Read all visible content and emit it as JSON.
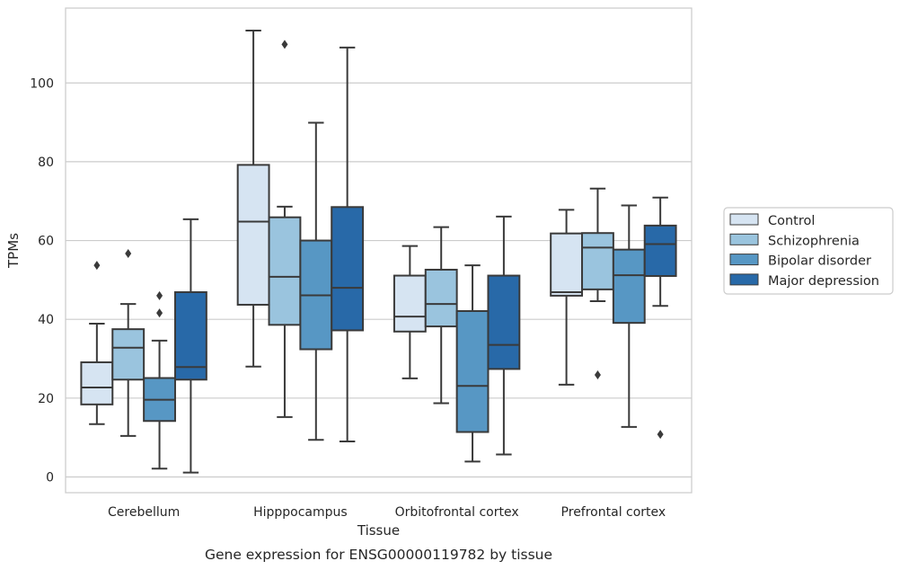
{
  "chart_data": {
    "type": "boxplot",
    "title": "",
    "caption": "Gene expression for ENSG00000119782 by tissue",
    "xlabel": "Tissue",
    "ylabel": "TPMs",
    "ylim": [
      -4,
      119
    ],
    "yticks": [
      0,
      20,
      40,
      60,
      80,
      100
    ],
    "grid": "horizontal",
    "legend_position": "right",
    "categories": [
      "Cerebellum",
      "Hipppocampus",
      "Orbitofrontal cortex",
      "Prefrontal cortex"
    ],
    "series": [
      {
        "name": "Control",
        "color": "#d6e4f2",
        "boxes": [
          {
            "whislo": 13.4,
            "q1": 18.4,
            "med": 22.7,
            "q3": 29.1,
            "whishi": 38.9,
            "fliers": [
              53.7
            ]
          },
          {
            "whislo": 28.0,
            "q1": 43.7,
            "med": 64.8,
            "q3": 79.2,
            "whishi": 113.3,
            "fliers": []
          },
          {
            "whislo": 25.0,
            "q1": 36.9,
            "med": 40.7,
            "q3": 51.1,
            "whishi": 58.6,
            "fliers": []
          },
          {
            "whislo": 23.4,
            "q1": 46.0,
            "med": 46.9,
            "q3": 61.8,
            "whishi": 67.8,
            "fliers": []
          }
        ]
      },
      {
        "name": "Schizophrenia",
        "color": "#9ac4de",
        "boxes": [
          {
            "whislo": 10.4,
            "q1": 24.7,
            "med": 32.8,
            "q3": 37.5,
            "whishi": 43.9,
            "fliers": [
              56.7
            ]
          },
          {
            "whislo": 15.2,
            "q1": 38.6,
            "med": 50.8,
            "q3": 65.9,
            "whishi": 68.6,
            "fliers": [
              109.8
            ]
          },
          {
            "whislo": 18.7,
            "q1": 38.2,
            "med": 43.9,
            "q3": 52.6,
            "whishi": 63.4,
            "fliers": []
          },
          {
            "whislo": 44.6,
            "q1": 47.6,
            "med": 58.2,
            "q3": 61.9,
            "whishi": 73.2,
            "fliers": [
              25.9
            ]
          }
        ]
      },
      {
        "name": "Bipolar disorder",
        "color": "#5797c4",
        "boxes": [
          {
            "whislo": 2.1,
            "q1": 14.2,
            "med": 19.6,
            "q3": 25.1,
            "whishi": 34.6,
            "fliers": [
              41.6,
              46.0
            ]
          },
          {
            "whislo": 9.4,
            "q1": 32.4,
            "med": 46.1,
            "q3": 60.0,
            "whishi": 89.9,
            "fliers": []
          },
          {
            "whislo": 3.9,
            "q1": 11.4,
            "med": 23.1,
            "q3": 42.1,
            "whishi": 53.7,
            "fliers": []
          },
          {
            "whislo": 12.7,
            "q1": 39.1,
            "med": 51.2,
            "q3": 57.7,
            "whishi": 68.9,
            "fliers": []
          }
        ]
      },
      {
        "name": "Major depression",
        "color": "#2869a8",
        "boxes": [
          {
            "whislo": 1.1,
            "q1": 24.7,
            "med": 27.9,
            "q3": 46.9,
            "whishi": 65.4,
            "fliers": []
          },
          {
            "whislo": 9.0,
            "q1": 37.2,
            "med": 48.0,
            "q3": 68.5,
            "whishi": 109.0,
            "fliers": []
          },
          {
            "whislo": 5.7,
            "q1": 27.4,
            "med": 33.5,
            "q3": 51.1,
            "whishi": 66.1,
            "fliers": []
          },
          {
            "whislo": 43.4,
            "q1": 51.0,
            "med": 59.1,
            "q3": 63.8,
            "whishi": 70.9,
            "fliers": [
              10.8
            ]
          }
        ]
      }
    ]
  }
}
